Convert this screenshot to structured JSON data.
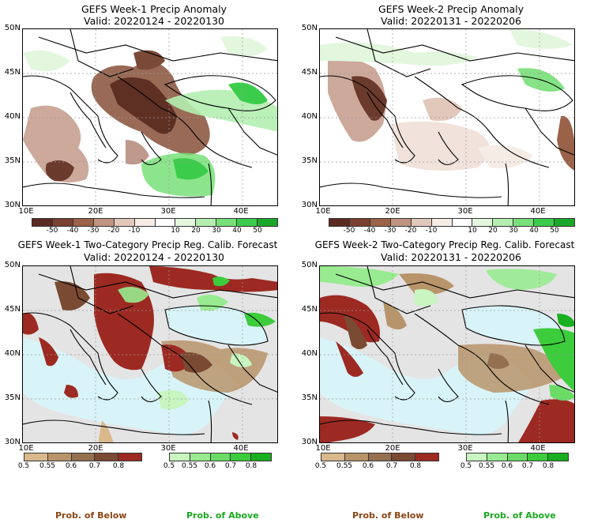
{
  "panels": [
    {
      "title": "GEFS Week-1 Precip Anomaly",
      "valid": "Valid: 20220124 - 20220130"
    },
    {
      "title": "GEFS Week-2 Precip Anomaly",
      "valid": "Valid: 20220131 - 20220206"
    },
    {
      "title": "GEFS Week-1 Two-Category Precip Reg. Calib. Forecast",
      "valid": "Valid: 20220124 - 20220130"
    },
    {
      "title": "GEFS Week-2 Two-Category Precip Reg. Calib. Forecast",
      "valid": "Valid: 20220131 - 20220206"
    }
  ],
  "axes": {
    "y_labels": [
      "50N",
      "45N",
      "40N",
      "35N",
      "30N"
    ],
    "x_labels": [
      "10E",
      "20E",
      "30E",
      "40E"
    ]
  },
  "anomaly_colorbar": {
    "labels": [
      "-50",
      "-40",
      "-30",
      "-20",
      "-10",
      "10",
      "20",
      "30",
      "40",
      "50"
    ],
    "colors": [
      "#5a2a22",
      "#7a4030",
      "#9a6248",
      "#c09480",
      "#e2c8bb",
      "#f6ece6",
      "#ffffff",
      "#e2f7dd",
      "#b4eeb0",
      "#78e078",
      "#3ccc4c",
      "#1aa82a"
    ]
  },
  "below_colorbar": {
    "labels": [
      "0.5",
      "0.55",
      "0.6",
      "0.7",
      "0.8"
    ],
    "colors": [
      "#d9b88c",
      "#b8946a",
      "#957050",
      "#7a4a32",
      "#9c2a22"
    ]
  },
  "above_colorbar": {
    "labels": [
      "0.5",
      "0.55",
      "0.6",
      "0.7",
      "0.8"
    ],
    "colors": [
      "#c8f5c0",
      "#98eb90",
      "#6adc66",
      "#3ccc3c",
      "#18b020"
    ]
  },
  "prob_labels": {
    "below": "Prob. of Below",
    "above": "Prob. of Above",
    "below_color": "#8b4513",
    "above_color": "#1aa820"
  },
  "map_colors": {
    "sea": "#d8f4f8",
    "land_gray": "#e4e4e4",
    "coast": "#000000"
  }
}
